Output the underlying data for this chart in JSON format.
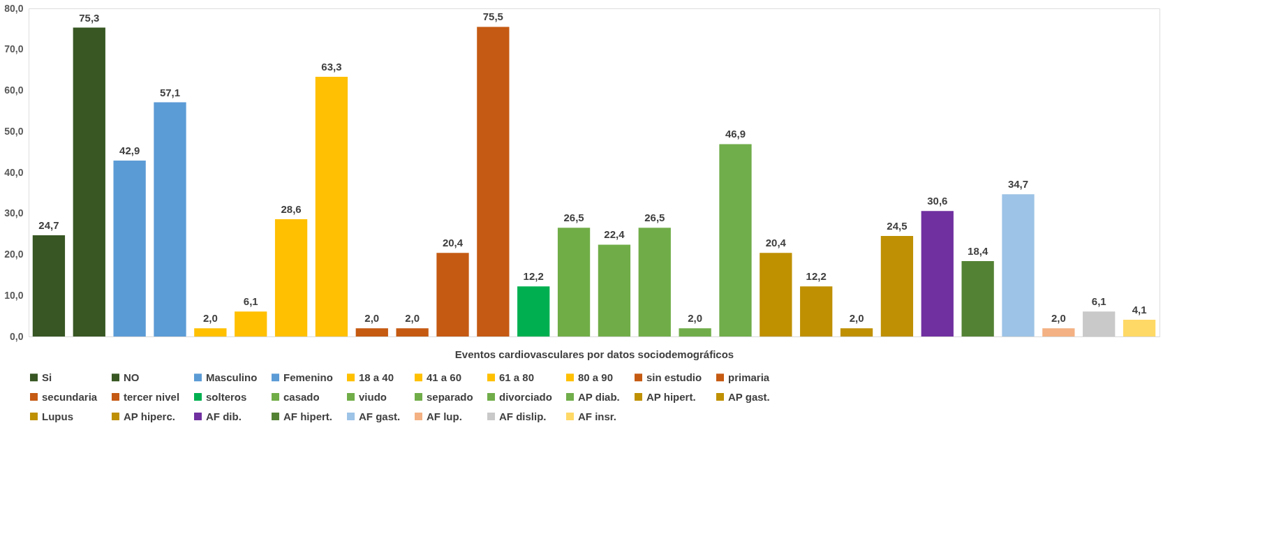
{
  "chart_data": {
    "type": "bar",
    "xlabel": "Eventos cardiovasculares por datos sociodemográficos",
    "categories": [
      null,
      null,
      null,
      null,
      null,
      null,
      null,
      null,
      null,
      null,
      null,
      null,
      null,
      null,
      null,
      null,
      null,
      null,
      null,
      null,
      null,
      null,
      null,
      null,
      null,
      null,
      null,
      null
    ],
    "ylim": [
      0,
      80
    ],
    "yticks": [
      {
        "value": 0,
        "label": "0,0"
      },
      {
        "value": 10,
        "label": "10,0"
      },
      {
        "value": 20,
        "label": "20,0"
      },
      {
        "value": 30,
        "label": "30,0"
      },
      {
        "value": 40,
        "label": "40,0"
      },
      {
        "value": 50,
        "label": "50,0"
      },
      {
        "value": 60,
        "label": "60,0"
      },
      {
        "value": 70,
        "label": "70,0"
      },
      {
        "value": 80,
        "label": "80,0"
      }
    ],
    "grid": false,
    "legend": "bottom",
    "series": [
      {
        "name": "Si",
        "color": "#375623",
        "values": [
          24.7,
          null,
          null,
          null,
          null,
          null,
          null,
          null,
          null,
          null,
          null,
          null,
          null,
          null,
          null,
          null,
          null,
          null,
          null,
          null,
          null,
          null,
          null,
          null,
          null,
          null,
          null,
          null
        ],
        "value_labels": [
          "24,7",
          null,
          null,
          null,
          null,
          null,
          null,
          null,
          null,
          null,
          null,
          null,
          null,
          null,
          null,
          null,
          null,
          null,
          null,
          null,
          null,
          null,
          null,
          null,
          null,
          null,
          null,
          null
        ]
      },
      {
        "name": "NO",
        "color": "#385723",
        "values": [
          null,
          75.3,
          null,
          null,
          null,
          null,
          null,
          null,
          null,
          null,
          null,
          null,
          null,
          null,
          null,
          null,
          null,
          null,
          null,
          null,
          null,
          null,
          null,
          null,
          null,
          null,
          null,
          null
        ],
        "value_labels": [
          null,
          "75,3",
          null,
          null,
          null,
          null,
          null,
          null,
          null,
          null,
          null,
          null,
          null,
          null,
          null,
          null,
          null,
          null,
          null,
          null,
          null,
          null,
          null,
          null,
          null,
          null,
          null,
          null
        ]
      },
      {
        "name": "Masculino",
        "color": "#5b9bd5",
        "values": [
          null,
          null,
          42.9,
          null,
          null,
          null,
          null,
          null,
          null,
          null,
          null,
          null,
          null,
          null,
          null,
          null,
          null,
          null,
          null,
          null,
          null,
          null,
          null,
          null,
          null,
          null,
          null,
          null
        ],
        "value_labels": [
          null,
          null,
          "42,9",
          null,
          null,
          null,
          null,
          null,
          null,
          null,
          null,
          null,
          null,
          null,
          null,
          null,
          null,
          null,
          null,
          null,
          null,
          null,
          null,
          null,
          null,
          null,
          null,
          null
        ]
      },
      {
        "name": "Femenino",
        "color": "#5b9bd6",
        "values": [
          null,
          null,
          null,
          57.1,
          null,
          null,
          null,
          null,
          null,
          null,
          null,
          null,
          null,
          null,
          null,
          null,
          null,
          null,
          null,
          null,
          null,
          null,
          null,
          null,
          null,
          null,
          null,
          null
        ],
        "value_labels": [
          null,
          null,
          null,
          "57,1",
          null,
          null,
          null,
          null,
          null,
          null,
          null,
          null,
          null,
          null,
          null,
          null,
          null,
          null,
          null,
          null,
          null,
          null,
          null,
          null,
          null,
          null,
          null,
          null
        ]
      },
      {
        "name": "18 a 40",
        "color": "#ffc000",
        "values": [
          null,
          null,
          null,
          null,
          2.0,
          null,
          null,
          null,
          null,
          null,
          null,
          null,
          null,
          null,
          null,
          null,
          null,
          null,
          null,
          null,
          null,
          null,
          null,
          null,
          null,
          null,
          null,
          null
        ],
        "value_labels": [
          null,
          null,
          null,
          null,
          "2,0",
          null,
          null,
          null,
          null,
          null,
          null,
          null,
          null,
          null,
          null,
          null,
          null,
          null,
          null,
          null,
          null,
          null,
          null,
          null,
          null,
          null,
          null,
          null
        ]
      },
      {
        "name": "41 a 60",
        "color": "#ffc001",
        "values": [
          null,
          null,
          null,
          null,
          null,
          6.1,
          null,
          null,
          null,
          null,
          null,
          null,
          null,
          null,
          null,
          null,
          null,
          null,
          null,
          null,
          null,
          null,
          null,
          null,
          null,
          null,
          null,
          null
        ],
        "value_labels": [
          null,
          null,
          null,
          null,
          null,
          "6,1",
          null,
          null,
          null,
          null,
          null,
          null,
          null,
          null,
          null,
          null,
          null,
          null,
          null,
          null,
          null,
          null,
          null,
          null,
          null,
          null,
          null,
          null
        ]
      },
      {
        "name": "61 a 80",
        "color": "#ffc002",
        "values": [
          null,
          null,
          null,
          null,
          null,
          null,
          28.6,
          null,
          null,
          null,
          null,
          null,
          null,
          null,
          null,
          null,
          null,
          null,
          null,
          null,
          null,
          null,
          null,
          null,
          null,
          null,
          null,
          null
        ],
        "value_labels": [
          null,
          null,
          null,
          null,
          null,
          null,
          "28,6",
          null,
          null,
          null,
          null,
          null,
          null,
          null,
          null,
          null,
          null,
          null,
          null,
          null,
          null,
          null,
          null,
          null,
          null,
          null,
          null,
          null
        ]
      },
      {
        "name": "80 a 90",
        "color": "#ffc003",
        "values": [
          null,
          null,
          null,
          null,
          null,
          null,
          null,
          63.3,
          null,
          null,
          null,
          null,
          null,
          null,
          null,
          null,
          null,
          null,
          null,
          null,
          null,
          null,
          null,
          null,
          null,
          null,
          null,
          null
        ],
        "value_labels": [
          null,
          null,
          null,
          null,
          null,
          null,
          null,
          "63,3",
          null,
          null,
          null,
          null,
          null,
          null,
          null,
          null,
          null,
          null,
          null,
          null,
          null,
          null,
          null,
          null,
          null,
          null,
          null,
          null
        ]
      },
      {
        "name": "sin estudio",
        "color": "#c55a11",
        "values": [
          null,
          null,
          null,
          null,
          null,
          null,
          null,
          null,
          2.0,
          null,
          null,
          null,
          null,
          null,
          null,
          null,
          null,
          null,
          null,
          null,
          null,
          null,
          null,
          null,
          null,
          null,
          null,
          null
        ],
        "value_labels": [
          null,
          null,
          null,
          null,
          null,
          null,
          null,
          null,
          "2,0",
          null,
          null,
          null,
          null,
          null,
          null,
          null,
          null,
          null,
          null,
          null,
          null,
          null,
          null,
          null,
          null,
          null,
          null,
          null
        ]
      },
      {
        "name": "primaria",
        "color": "#c55a12",
        "values": [
          null,
          null,
          null,
          null,
          null,
          null,
          null,
          null,
          null,
          2.0,
          null,
          null,
          null,
          null,
          null,
          null,
          null,
          null,
          null,
          null,
          null,
          null,
          null,
          null,
          null,
          null,
          null,
          null
        ],
        "value_labels": [
          null,
          null,
          null,
          null,
          null,
          null,
          null,
          null,
          null,
          "2,0",
          null,
          null,
          null,
          null,
          null,
          null,
          null,
          null,
          null,
          null,
          null,
          null,
          null,
          null,
          null,
          null,
          null,
          null
        ]
      },
      {
        "name": "secundaria",
        "color": "#c55a13",
        "values": [
          null,
          null,
          null,
          null,
          null,
          null,
          null,
          null,
          null,
          null,
          20.4,
          null,
          null,
          null,
          null,
          null,
          null,
          null,
          null,
          null,
          null,
          null,
          null,
          null,
          null,
          null,
          null,
          null
        ],
        "value_labels": [
          null,
          null,
          null,
          null,
          null,
          null,
          null,
          null,
          null,
          null,
          "20,4",
          null,
          null,
          null,
          null,
          null,
          null,
          null,
          null,
          null,
          null,
          null,
          null,
          null,
          null,
          null,
          null,
          null
        ]
      },
      {
        "name": "tercer nivel",
        "color": "#c55a14",
        "values": [
          null,
          null,
          null,
          null,
          null,
          null,
          null,
          null,
          null,
          null,
          null,
          75.5,
          null,
          null,
          null,
          null,
          null,
          null,
          null,
          null,
          null,
          null,
          null,
          null,
          null,
          null,
          null,
          null
        ],
        "value_labels": [
          null,
          null,
          null,
          null,
          null,
          null,
          null,
          null,
          null,
          null,
          null,
          "75,5",
          null,
          null,
          null,
          null,
          null,
          null,
          null,
          null,
          null,
          null,
          null,
          null,
          null,
          null,
          null,
          null
        ]
      },
      {
        "name": "solteros",
        "color": "#00b050",
        "values": [
          null,
          null,
          null,
          null,
          null,
          null,
          null,
          null,
          null,
          null,
          null,
          null,
          12.2,
          null,
          null,
          null,
          null,
          null,
          null,
          null,
          null,
          null,
          null,
          null,
          null,
          null,
          null,
          null
        ],
        "value_labels": [
          null,
          null,
          null,
          null,
          null,
          null,
          null,
          null,
          null,
          null,
          null,
          null,
          "12,2",
          null,
          null,
          null,
          null,
          null,
          null,
          null,
          null,
          null,
          null,
          null,
          null,
          null,
          null,
          null
        ]
      },
      {
        "name": "casado",
        "color": "#70ad47",
        "values": [
          null,
          null,
          null,
          null,
          null,
          null,
          null,
          null,
          null,
          null,
          null,
          null,
          null,
          26.5,
          null,
          null,
          null,
          null,
          null,
          null,
          null,
          null,
          null,
          null,
          null,
          null,
          null,
          null
        ],
        "value_labels": [
          null,
          null,
          null,
          null,
          null,
          null,
          null,
          null,
          null,
          null,
          null,
          null,
          null,
          "26,5",
          null,
          null,
          null,
          null,
          null,
          null,
          null,
          null,
          null,
          null,
          null,
          null,
          null,
          null
        ]
      },
      {
        "name": "viudo",
        "color": "#70ad48",
        "values": [
          null,
          null,
          null,
          null,
          null,
          null,
          null,
          null,
          null,
          null,
          null,
          null,
          null,
          null,
          22.4,
          null,
          null,
          null,
          null,
          null,
          null,
          null,
          null,
          null,
          null,
          null,
          null,
          null
        ],
        "value_labels": [
          null,
          null,
          null,
          null,
          null,
          null,
          null,
          null,
          null,
          null,
          null,
          null,
          null,
          null,
          "22,4",
          null,
          null,
          null,
          null,
          null,
          null,
          null,
          null,
          null,
          null,
          null,
          null,
          null
        ]
      },
      {
        "name": "separado",
        "color": "#70ad49",
        "values": [
          null,
          null,
          null,
          null,
          null,
          null,
          null,
          null,
          null,
          null,
          null,
          null,
          null,
          null,
          null,
          26.5,
          null,
          null,
          null,
          null,
          null,
          null,
          null,
          null,
          null,
          null,
          null,
          null
        ],
        "value_labels": [
          null,
          null,
          null,
          null,
          null,
          null,
          null,
          null,
          null,
          null,
          null,
          null,
          null,
          null,
          null,
          "26,5",
          null,
          null,
          null,
          null,
          null,
          null,
          null,
          null,
          null,
          null,
          null,
          null
        ]
      },
      {
        "name": "divorciado",
        "color": "#70ad4a",
        "values": [
          null,
          null,
          null,
          null,
          null,
          null,
          null,
          null,
          null,
          null,
          null,
          null,
          null,
          null,
          null,
          null,
          2.0,
          null,
          null,
          null,
          null,
          null,
          null,
          null,
          null,
          null,
          null,
          null
        ],
        "value_labels": [
          null,
          null,
          null,
          null,
          null,
          null,
          null,
          null,
          null,
          null,
          null,
          null,
          null,
          null,
          null,
          null,
          "2,0",
          null,
          null,
          null,
          null,
          null,
          null,
          null,
          null,
          null,
          null,
          null
        ]
      },
      {
        "name": "AP diab.",
        "color": "#70ad4b",
        "values": [
          null,
          null,
          null,
          null,
          null,
          null,
          null,
          null,
          null,
          null,
          null,
          null,
          null,
          null,
          null,
          null,
          null,
          46.9,
          null,
          null,
          null,
          null,
          null,
          null,
          null,
          null,
          null,
          null
        ],
        "value_labels": [
          null,
          null,
          null,
          null,
          null,
          null,
          null,
          null,
          null,
          null,
          null,
          null,
          null,
          null,
          null,
          null,
          null,
          "46,9",
          null,
          null,
          null,
          null,
          null,
          null,
          null,
          null,
          null,
          null
        ]
      },
      {
        "name": "AP hipert.",
        "color": "#bf9000",
        "values": [
          null,
          null,
          null,
          null,
          null,
          null,
          null,
          null,
          null,
          null,
          null,
          null,
          null,
          null,
          null,
          null,
          null,
          null,
          20.4,
          null,
          null,
          null,
          null,
          null,
          null,
          null,
          null,
          null
        ],
        "value_labels": [
          null,
          null,
          null,
          null,
          null,
          null,
          null,
          null,
          null,
          null,
          null,
          null,
          null,
          null,
          null,
          null,
          null,
          null,
          "20,4",
          null,
          null,
          null,
          null,
          null,
          null,
          null,
          null,
          null
        ]
      },
      {
        "name": "AP gast.",
        "color": "#bf9001",
        "values": [
          null,
          null,
          null,
          null,
          null,
          null,
          null,
          null,
          null,
          null,
          null,
          null,
          null,
          null,
          null,
          null,
          null,
          null,
          null,
          12.2,
          null,
          null,
          null,
          null,
          null,
          null,
          null,
          null
        ],
        "value_labels": [
          null,
          null,
          null,
          null,
          null,
          null,
          null,
          null,
          null,
          null,
          null,
          null,
          null,
          null,
          null,
          null,
          null,
          null,
          null,
          "12,2",
          null,
          null,
          null,
          null,
          null,
          null,
          null,
          null
        ]
      },
      {
        "name": "Lupus",
        "color": "#bf9002",
        "values": [
          null,
          null,
          null,
          null,
          null,
          null,
          null,
          null,
          null,
          null,
          null,
          null,
          null,
          null,
          null,
          null,
          null,
          null,
          null,
          null,
          2.0,
          null,
          null,
          null,
          null,
          null,
          null,
          null
        ],
        "value_labels": [
          null,
          null,
          null,
          null,
          null,
          null,
          null,
          null,
          null,
          null,
          null,
          null,
          null,
          null,
          null,
          null,
          null,
          null,
          null,
          null,
          "2,0",
          null,
          null,
          null,
          null,
          null,
          null,
          null
        ]
      },
      {
        "name": "AP hiperc.",
        "color": "#bf9003",
        "values": [
          null,
          null,
          null,
          null,
          null,
          null,
          null,
          null,
          null,
          null,
          null,
          null,
          null,
          null,
          null,
          null,
          null,
          null,
          null,
          null,
          null,
          24.5,
          null,
          null,
          null,
          null,
          null,
          null
        ],
        "value_labels": [
          null,
          null,
          null,
          null,
          null,
          null,
          null,
          null,
          null,
          null,
          null,
          null,
          null,
          null,
          null,
          null,
          null,
          null,
          null,
          null,
          null,
          "24,5",
          null,
          null,
          null,
          null,
          null,
          null
        ]
      },
      {
        "name": "AF dib.",
        "color": "#7030a0",
        "values": [
          null,
          null,
          null,
          null,
          null,
          null,
          null,
          null,
          null,
          null,
          null,
          null,
          null,
          null,
          null,
          null,
          null,
          null,
          null,
          null,
          null,
          null,
          30.6,
          null,
          null,
          null,
          null,
          null
        ],
        "value_labels": [
          null,
          null,
          null,
          null,
          null,
          null,
          null,
          null,
          null,
          null,
          null,
          null,
          null,
          null,
          null,
          null,
          null,
          null,
          null,
          null,
          null,
          null,
          "30,6",
          null,
          null,
          null,
          null,
          null
        ]
      },
      {
        "name": "AF hipert.",
        "color": "#548235",
        "values": [
          null,
          null,
          null,
          null,
          null,
          null,
          null,
          null,
          null,
          null,
          null,
          null,
          null,
          null,
          null,
          null,
          null,
          null,
          null,
          null,
          null,
          null,
          null,
          18.4,
          null,
          null,
          null,
          null
        ],
        "value_labels": [
          null,
          null,
          null,
          null,
          null,
          null,
          null,
          null,
          null,
          null,
          null,
          null,
          null,
          null,
          null,
          null,
          null,
          null,
          null,
          null,
          null,
          null,
          null,
          "18,4",
          null,
          null,
          null,
          null
        ]
      },
      {
        "name": "AF gast.",
        "color": "#9dc3e6",
        "values": [
          null,
          null,
          null,
          null,
          null,
          null,
          null,
          null,
          null,
          null,
          null,
          null,
          null,
          null,
          null,
          null,
          null,
          null,
          null,
          null,
          null,
          null,
          null,
          null,
          34.7,
          null,
          null,
          null
        ],
        "value_labels": [
          null,
          null,
          null,
          null,
          null,
          null,
          null,
          null,
          null,
          null,
          null,
          null,
          null,
          null,
          null,
          null,
          null,
          null,
          null,
          null,
          null,
          null,
          null,
          null,
          "34,7",
          null,
          null,
          null
        ]
      },
      {
        "name": "AF lup.",
        "color": "#f4b183",
        "values": [
          null,
          null,
          null,
          null,
          null,
          null,
          null,
          null,
          null,
          null,
          null,
          null,
          null,
          null,
          null,
          null,
          null,
          null,
          null,
          null,
          null,
          null,
          null,
          null,
          null,
          2.0,
          null,
          null
        ],
        "value_labels": [
          null,
          null,
          null,
          null,
          null,
          null,
          null,
          null,
          null,
          null,
          null,
          null,
          null,
          null,
          null,
          null,
          null,
          null,
          null,
          null,
          null,
          null,
          null,
          null,
          null,
          "2,0",
          null,
          null
        ]
      },
      {
        "name": "AF dislip.",
        "color": "#c9c9c9",
        "values": [
          null,
          null,
          null,
          null,
          null,
          null,
          null,
          null,
          null,
          null,
          null,
          null,
          null,
          null,
          null,
          null,
          null,
          null,
          null,
          null,
          null,
          null,
          null,
          null,
          null,
          null,
          6.1,
          null
        ],
        "value_labels": [
          null,
          null,
          null,
          null,
          null,
          null,
          null,
          null,
          null,
          null,
          null,
          null,
          null,
          null,
          null,
          null,
          null,
          null,
          null,
          null,
          null,
          null,
          null,
          null,
          null,
          null,
          "6,1",
          null
        ]
      },
      {
        "name": "AF insr.",
        "color": "#ffd966",
        "values": [
          null,
          null,
          null,
          null,
          null,
          null,
          null,
          null,
          null,
          null,
          null,
          null,
          null,
          null,
          null,
          null,
          null,
          null,
          null,
          null,
          null,
          null,
          null,
          null,
          null,
          null,
          null,
          4.1
        ],
        "value_labels": [
          null,
          null,
          null,
          null,
          null,
          null,
          null,
          null,
          null,
          null,
          null,
          null,
          null,
          null,
          null,
          null,
          null,
          null,
          null,
          null,
          null,
          null,
          null,
          null,
          null,
          null,
          null,
          "4,1"
        ]
      }
    ]
  }
}
